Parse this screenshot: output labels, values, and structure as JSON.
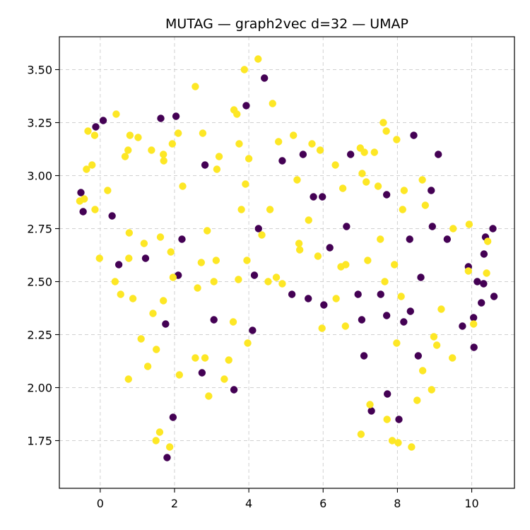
{
  "chart_data": {
    "type": "scatter",
    "title": "MUTAG — graph2vec d=32 — UMAP",
    "xlabel": "",
    "ylabel": "",
    "xlim": [
      -1.1,
      11.15
    ],
    "ylim": [
      1.525,
      3.655
    ],
    "xticks": [
      0,
      2,
      4,
      6,
      8,
      10
    ],
    "yticks": [
      1.75,
      2.0,
      2.25,
      2.5,
      2.75,
      3.0,
      3.25,
      3.5
    ],
    "ytick_labels": [
      "1.75",
      "2.00",
      "2.25",
      "2.50",
      "2.75",
      "3.00",
      "3.25",
      "3.50"
    ],
    "grid": true,
    "series": [
      {
        "color": "#440154",
        "points": [
          [
            -0.52,
            2.92
          ],
          [
            -0.46,
            2.83
          ],
          [
            -0.12,
            3.23
          ],
          [
            0.08,
            3.26
          ],
          [
            0.32,
            2.81
          ],
          [
            0.5,
            2.58
          ],
          [
            1.22,
            2.61
          ],
          [
            1.63,
            3.27
          ],
          [
            1.76,
            2.3
          ],
          [
            1.8,
            1.67
          ],
          [
            1.96,
            1.86
          ],
          [
            2.04,
            3.28
          ],
          [
            2.1,
            2.53
          ],
          [
            2.2,
            2.7
          ],
          [
            2.74,
            2.07
          ],
          [
            2.82,
            3.05
          ],
          [
            3.06,
            2.32
          ],
          [
            3.6,
            1.99
          ],
          [
            3.93,
            3.33
          ],
          [
            4.1,
            2.27
          ],
          [
            4.15,
            2.53
          ],
          [
            4.26,
            2.75
          ],
          [
            4.42,
            3.46
          ],
          [
            4.9,
            3.07
          ],
          [
            5.16,
            2.44
          ],
          [
            5.46,
            3.1
          ],
          [
            5.6,
            2.42
          ],
          [
            5.74,
            2.9
          ],
          [
            5.98,
            2.9
          ],
          [
            6.02,
            2.39
          ],
          [
            6.18,
            2.66
          ],
          [
            6.63,
            2.76
          ],
          [
            6.74,
            3.1
          ],
          [
            6.94,
            2.44
          ],
          [
            7.04,
            2.32
          ],
          [
            7.1,
            2.15
          ],
          [
            7.3,
            1.89
          ],
          [
            7.55,
            2.44
          ],
          [
            7.71,
            2.34
          ],
          [
            7.71,
            2.91
          ],
          [
            7.73,
            1.97
          ],
          [
            8.04,
            1.85
          ],
          [
            8.17,
            2.31
          ],
          [
            8.33,
            2.7
          ],
          [
            8.35,
            2.36
          ],
          [
            8.44,
            3.19
          ],
          [
            8.56,
            2.15
          ],
          [
            8.63,
            2.52
          ],
          [
            8.91,
            2.93
          ],
          [
            8.94,
            2.76
          ],
          [
            9.1,
            3.1
          ],
          [
            9.34,
            2.7
          ],
          [
            9.75,
            2.29
          ],
          [
            9.91,
            2.57
          ],
          [
            10.05,
            2.33
          ],
          [
            10.06,
            2.19
          ],
          [
            10.15,
            2.5
          ],
          [
            10.26,
            2.4
          ],
          [
            10.32,
            2.49
          ],
          [
            10.33,
            2.63
          ],
          [
            10.37,
            2.71
          ],
          [
            10.57,
            2.75
          ],
          [
            10.6,
            2.43
          ]
        ]
      },
      {
        "color": "#fde725",
        "points": [
          [
            -0.55,
            2.88
          ],
          [
            -0.43,
            2.89
          ],
          [
            -0.37,
            3.03
          ],
          [
            -0.33,
            3.21
          ],
          [
            -0.22,
            3.05
          ],
          [
            -0.15,
            3.19
          ],
          [
            -0.14,
            2.84
          ],
          [
            -0.02,
            2.61
          ],
          [
            0.2,
            2.93
          ],
          [
            0.4,
            2.5
          ],
          [
            0.43,
            3.29
          ],
          [
            0.55,
            2.44
          ],
          [
            0.67,
            3.09
          ],
          [
            0.75,
            3.12
          ],
          [
            0.76,
            2.04
          ],
          [
            0.77,
            2.61
          ],
          [
            0.78,
            2.73
          ],
          [
            0.8,
            3.19
          ],
          [
            0.88,
            2.42
          ],
          [
            1.02,
            3.18
          ],
          [
            1.1,
            2.23
          ],
          [
            1.18,
            2.68
          ],
          [
            1.28,
            2.1
          ],
          [
            1.38,
            3.12
          ],
          [
            1.42,
            2.35
          ],
          [
            1.5,
            1.75
          ],
          [
            1.51,
            2.18
          ],
          [
            1.6,
            1.79
          ],
          [
            1.62,
            2.71
          ],
          [
            1.7,
            2.41
          ],
          [
            1.7,
            3.1
          ],
          [
            1.71,
            3.07
          ],
          [
            1.87,
            1.72
          ],
          [
            1.9,
            2.64
          ],
          [
            1.94,
            3.15
          ],
          [
            1.96,
            2.52
          ],
          [
            2.1,
            3.2
          ],
          [
            2.13,
            2.06
          ],
          [
            2.22,
            2.95
          ],
          [
            2.56,
            3.42
          ],
          [
            2.56,
            2.14
          ],
          [
            2.62,
            2.47
          ],
          [
            2.72,
            2.59
          ],
          [
            2.76,
            3.2
          ],
          [
            2.82,
            2.14
          ],
          [
            2.88,
            2.74
          ],
          [
            2.92,
            1.96
          ],
          [
            3.06,
            2.5
          ],
          [
            3.12,
            2.6
          ],
          [
            3.14,
            3.03
          ],
          [
            3.2,
            3.09
          ],
          [
            3.34,
            2.04
          ],
          [
            3.46,
            2.13
          ],
          [
            3.58,
            2.31
          ],
          [
            3.6,
            3.31
          ],
          [
            3.68,
            3.29
          ],
          [
            3.72,
            2.51
          ],
          [
            3.74,
            3.15
          ],
          [
            3.8,
            2.84
          ],
          [
            3.88,
            3.5
          ],
          [
            3.91,
            2.96
          ],
          [
            3.95,
            2.6
          ],
          [
            3.97,
            2.21
          ],
          [
            4.0,
            3.08
          ],
          [
            4.25,
            3.55
          ],
          [
            4.35,
            2.72
          ],
          [
            4.52,
            2.5
          ],
          [
            4.57,
            2.84
          ],
          [
            4.64,
            3.34
          ],
          [
            4.74,
            2.52
          ],
          [
            4.8,
            3.16
          ],
          [
            4.9,
            2.49
          ],
          [
            5.2,
            3.19
          ],
          [
            5.3,
            2.98
          ],
          [
            5.35,
            2.68
          ],
          [
            5.37,
            2.65
          ],
          [
            5.61,
            2.79
          ],
          [
            5.7,
            3.15
          ],
          [
            5.86,
            2.62
          ],
          [
            5.92,
            3.12
          ],
          [
            5.97,
            2.28
          ],
          [
            6.33,
            3.05
          ],
          [
            6.35,
            2.42
          ],
          [
            6.48,
            2.57
          ],
          [
            6.53,
            2.94
          ],
          [
            6.6,
            2.29
          ],
          [
            6.61,
            2.58
          ],
          [
            7.0,
            3.13
          ],
          [
            7.02,
            1.78
          ],
          [
            7.05,
            3.01
          ],
          [
            7.11,
            3.11
          ],
          [
            7.16,
            2.97
          ],
          [
            7.2,
            2.6
          ],
          [
            7.26,
            1.92
          ],
          [
            7.38,
            3.11
          ],
          [
            7.48,
            2.95
          ],
          [
            7.54,
            2.7
          ],
          [
            7.62,
            3.25
          ],
          [
            7.66,
            2.5
          ],
          [
            7.7,
            3.21
          ],
          [
            7.72,
            1.85
          ],
          [
            7.86,
            1.75
          ],
          [
            7.92,
            2.58
          ],
          [
            7.98,
            3.17
          ],
          [
            7.98,
            2.21
          ],
          [
            8.02,
            1.74
          ],
          [
            8.1,
            2.43
          ],
          [
            8.14,
            2.84
          ],
          [
            8.18,
            2.93
          ],
          [
            8.38,
            1.72
          ],
          [
            8.53,
            1.94
          ],
          [
            8.68,
            2.08
          ],
          [
            8.67,
            2.98
          ],
          [
            8.75,
            2.86
          ],
          [
            8.92,
            1.99
          ],
          [
            8.98,
            2.24
          ],
          [
            9.06,
            2.2
          ],
          [
            9.18,
            2.37
          ],
          [
            9.48,
            2.14
          ],
          [
            9.5,
            2.75
          ],
          [
            9.91,
            2.55
          ],
          [
            9.93,
            2.77
          ],
          [
            10.05,
            2.3
          ],
          [
            10.4,
            2.54
          ],
          [
            10.43,
            2.69
          ]
        ]
      }
    ]
  }
}
